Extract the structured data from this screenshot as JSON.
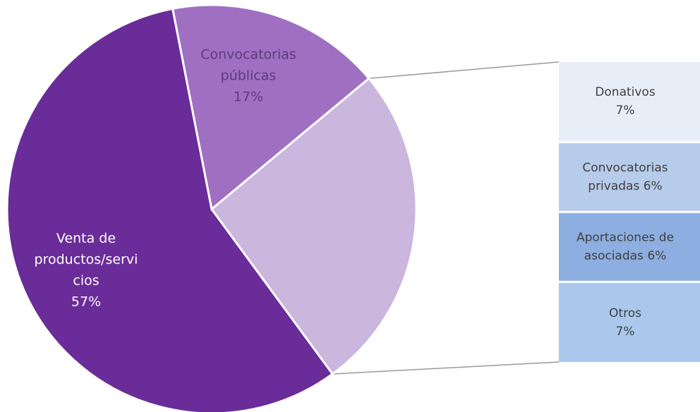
{
  "chart_data": {
    "type": "bar-of-pie",
    "pie": {
      "slices": [
        {
          "label_lines": [
            "Venta de",
            "productos/servi",
            "cios",
            "57%"
          ],
          "value": 57,
          "color": "#6a2c98",
          "text_color": "#ffffff"
        },
        {
          "label_lines": [
            "Convocatorias",
            "públicas",
            "17%"
          ],
          "value": 17,
          "color": "#9f70c2",
          "text_color": "#5e3a7e"
        },
        {
          "label_lines": [],
          "value": 26,
          "color": "#cbb6de",
          "text_color": "#5e3a7e"
        }
      ]
    },
    "bar": {
      "segments": [
        {
          "label_lines": [
            "Donativos",
            "7%"
          ],
          "value": 7,
          "color": "#e8eef8"
        },
        {
          "label_lines": [
            "Convocatorias",
            "privadas 6%"
          ],
          "value": 6,
          "color": "#b7cbea"
        },
        {
          "label_lines": [
            "Aportaciones de",
            "asociadas 6%"
          ],
          "value": 6,
          "color": "#8daee0"
        },
        {
          "label_lines": [
            "Otros",
            "7%"
          ],
          "value": 7,
          "color": "#a9c8ec"
        }
      ]
    }
  }
}
